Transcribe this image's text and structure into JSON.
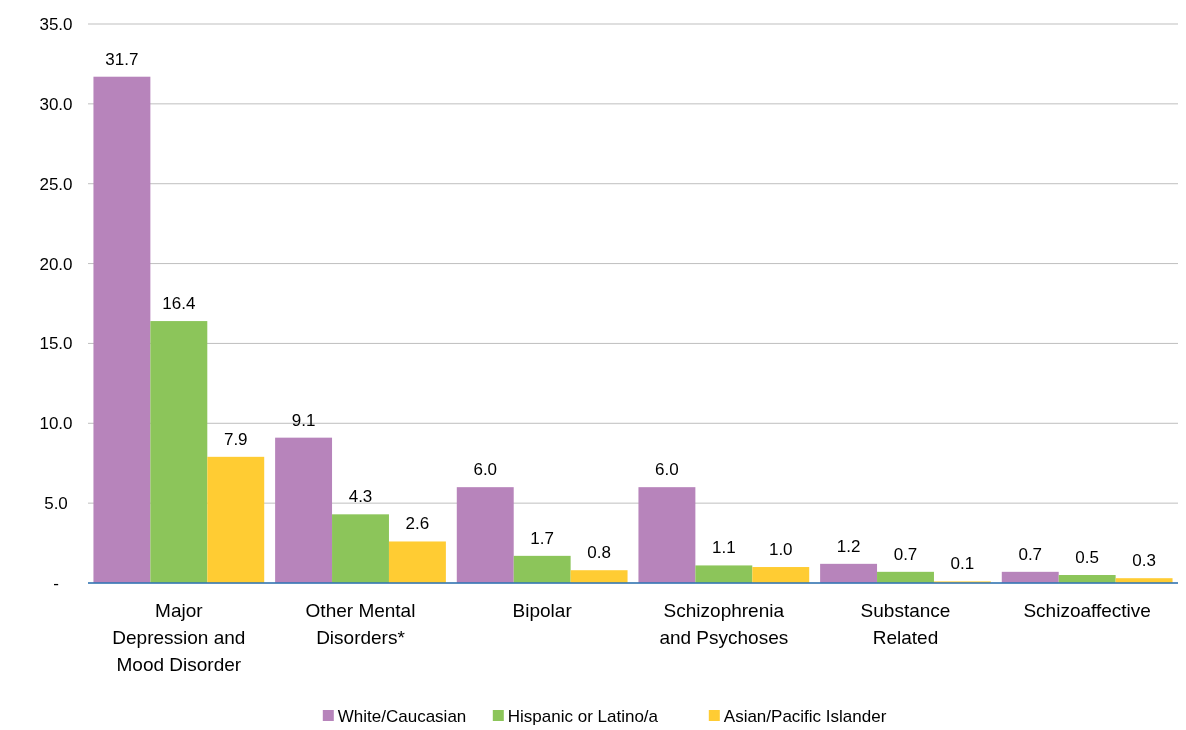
{
  "chart_data": {
    "type": "bar",
    "categories": [
      "Major Depression and Mood Disorder",
      "Other Mental Disorders*",
      "Bipolar",
      "Schizophrenia and Psychoses",
      "Substance Related",
      "Schizoaffective"
    ],
    "series": [
      {
        "name": "White/Caucasian",
        "color": "#b784bb",
        "values": [
          31.7,
          9.1,
          6.0,
          6.0,
          1.2,
          0.7
        ],
        "value_labels": [
          "31.7",
          "9.1",
          "6.0",
          "6.0",
          "1.2",
          "0.7"
        ]
      },
      {
        "name": "Hispanic or Latino/a",
        "color": "#8cc55a",
        "values": [
          16.4,
          4.3,
          1.7,
          1.1,
          0.7,
          0.5
        ],
        "value_labels": [
          "16.4",
          "4.3",
          "1.7",
          "1.1",
          "0.7",
          "0.5"
        ]
      },
      {
        "name": "Asian/Pacific Islander",
        "color": "#ffcc33",
        "values": [
          7.9,
          2.6,
          0.8,
          1.0,
          0.1,
          0.3
        ],
        "value_labels": [
          "7.9",
          "2.6",
          "0.8",
          "1.0",
          "0.1",
          "0.3"
        ]
      }
    ],
    "ylim": [
      0,
      35
    ],
    "yticks": [
      {
        "value": 0,
        "label": "-"
      },
      {
        "value": 5,
        "label": "5.0"
      },
      {
        "value": 10,
        "label": "10.0"
      },
      {
        "value": 15,
        "label": "15.0"
      },
      {
        "value": 20,
        "label": "20.0"
      },
      {
        "value": 25,
        "label": "25.0"
      },
      {
        "value": 30,
        "label": "30.0"
      },
      {
        "value": 35,
        "label": "35.0"
      }
    ],
    "grid": "y",
    "legend": "bottom"
  }
}
